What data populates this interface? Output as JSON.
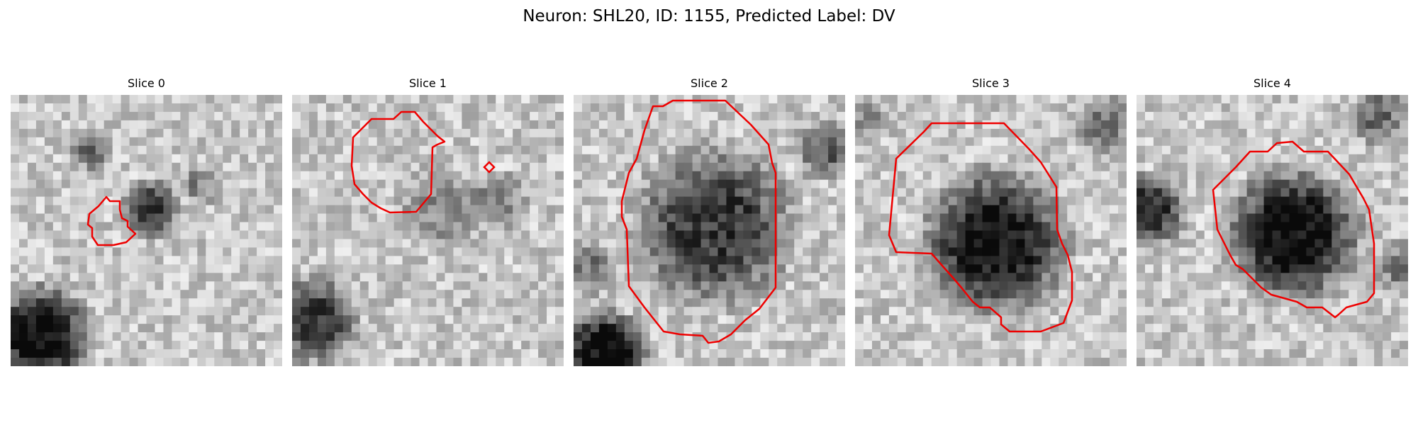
{
  "figure": {
    "title": "Neuron: SHL20, ID: 1155, Predicted Label: DV"
  },
  "colors": {
    "contour": "#ee0000",
    "background": "#ffffff",
    "image_colormap": "grayscale"
  },
  "panels": [
    {
      "title": "Slice 0",
      "image": {
        "grid_size": 32,
        "colormap": "grayscale",
        "overlay": "red segmentation contour",
        "contour_size": "small",
        "contour_shape": "irregular blob in upper-left-center"
      }
    },
    {
      "title": "Slice 1",
      "image": {
        "grid_size": 32,
        "colormap": "grayscale",
        "overlay": "red segmentation contour",
        "contour_size": "medium",
        "contour_shape": "polygon with small detached square on right"
      }
    },
    {
      "title": "Slice 2",
      "image": {
        "grid_size": 32,
        "colormap": "grayscale",
        "overlay": "red segmentation contour",
        "contour_size": "large",
        "contour_shape": "rounded octagon covering the dark cell body"
      }
    },
    {
      "title": "Slice 3",
      "image": {
        "grid_size": 32,
        "colormap": "grayscale",
        "overlay": "red segmentation contour",
        "contour_size": "large",
        "contour_shape": "stepped shape on the dark cell body"
      }
    },
    {
      "title": "Slice 4",
      "image": {
        "grid_size": 32,
        "colormap": "grayscale",
        "overlay": "red segmentation contour",
        "contour_size": "large",
        "contour_shape": "stepped shape on the dark cell body"
      }
    }
  ]
}
